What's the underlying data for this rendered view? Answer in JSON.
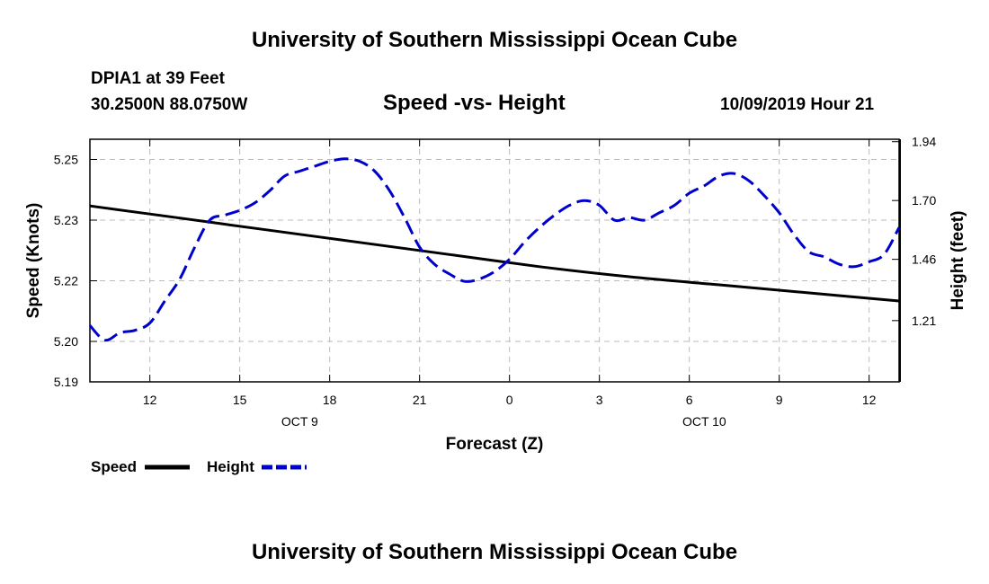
{
  "header": {
    "title_top": "University of Southern Mississippi Ocean Cube",
    "title_bottom": "University of Southern Mississippi Ocean Cube",
    "station": "DPIA1 at 39 Feet",
    "location": "30.2500N 88.0750W",
    "datetime": "10/09/2019 Hour 21"
  },
  "colors": {
    "speed": "#000000",
    "height": "#0000cc",
    "grid": "#bbbbbb"
  },
  "chart_data": {
    "type": "line",
    "title": "Speed -vs- Height",
    "xlabel": "Forecast (Z)",
    "ylabel": "Speed (Knots)",
    "ylabel_right": "Height (feet)",
    "x_range": [
      10,
      37
    ],
    "ylim": [
      5.19,
      5.25
    ],
    "ylim_right": [
      0.96,
      1.95
    ],
    "x_ticks": [
      {
        "x": 12,
        "label": "12"
      },
      {
        "x": 15,
        "label": "15"
      },
      {
        "x": 18,
        "label": "18"
      },
      {
        "x": 21,
        "label": "21"
      },
      {
        "x": 24,
        "label": "0"
      },
      {
        "x": 27,
        "label": "3"
      },
      {
        "x": 30,
        "label": "6"
      },
      {
        "x": 33,
        "label": "9"
      },
      {
        "x": 36,
        "label": "12"
      }
    ],
    "date_labels": [
      {
        "x": 17,
        "label": "OCT 9"
      },
      {
        "x": 30.5,
        "label": "OCT 10"
      }
    ],
    "y_ticks_left": [
      {
        "v": 5.19,
        "label": "5.19"
      },
      {
        "v": 5.2,
        "label": "5.20"
      },
      {
        "v": 5.215,
        "label": "5.22"
      },
      {
        "v": 5.23,
        "label": "5.23"
      },
      {
        "v": 5.245,
        "label": "5.25"
      }
    ],
    "y_ticks_right": [
      {
        "v": 1.21,
        "label": "1.21"
      },
      {
        "v": 1.46,
        "label": "1.46"
      },
      {
        "v": 1.7,
        "label": "1.70"
      },
      {
        "v": 1.94,
        "label": "1.94"
      }
    ],
    "grid": true,
    "legend": [
      {
        "name": "Speed",
        "style": "solid"
      },
      {
        "name": "Height",
        "style": "dashed"
      }
    ],
    "series": [
      {
        "name": "Speed",
        "axis": "left",
        "x": [
          10,
          13,
          16,
          19,
          22,
          25,
          28,
          31,
          34,
          37
        ],
        "values": [
          5.2335,
          5.2305,
          5.2275,
          5.2245,
          5.2215,
          5.2185,
          5.216,
          5.214,
          5.212,
          5.21
        ]
      },
      {
        "name": "Height",
        "axis": "right",
        "x": [
          10,
          10.5,
          11,
          11.5,
          12,
          12.5,
          13,
          13.5,
          14,
          14.5,
          15,
          15.5,
          16,
          16.5,
          17,
          17.5,
          18,
          18.5,
          19,
          19.5,
          20,
          20.5,
          21,
          21.5,
          22,
          22.5,
          23,
          23.5,
          24,
          24.5,
          25,
          25.5,
          26,
          26.5,
          27,
          27.5,
          28,
          28.5,
          29,
          29.5,
          30,
          30.5,
          31,
          31.5,
          32,
          32.5,
          33,
          33.5,
          34,
          34.5,
          35,
          35.5,
          36,
          36.5,
          37
        ],
        "values": [
          1.19,
          1.13,
          1.16,
          1.17,
          1.2,
          1.29,
          1.38,
          1.51,
          1.62,
          1.64,
          1.66,
          1.69,
          1.74,
          1.8,
          1.82,
          1.84,
          1.86,
          1.87,
          1.86,
          1.82,
          1.74,
          1.63,
          1.51,
          1.44,
          1.4,
          1.37,
          1.38,
          1.41,
          1.46,
          1.53,
          1.59,
          1.64,
          1.68,
          1.7,
          1.68,
          1.62,
          1.63,
          1.62,
          1.65,
          1.68,
          1.73,
          1.76,
          1.8,
          1.81,
          1.78,
          1.72,
          1.65,
          1.56,
          1.49,
          1.47,
          1.44,
          1.43,
          1.45,
          1.48,
          1.59
        ]
      }
    ]
  }
}
